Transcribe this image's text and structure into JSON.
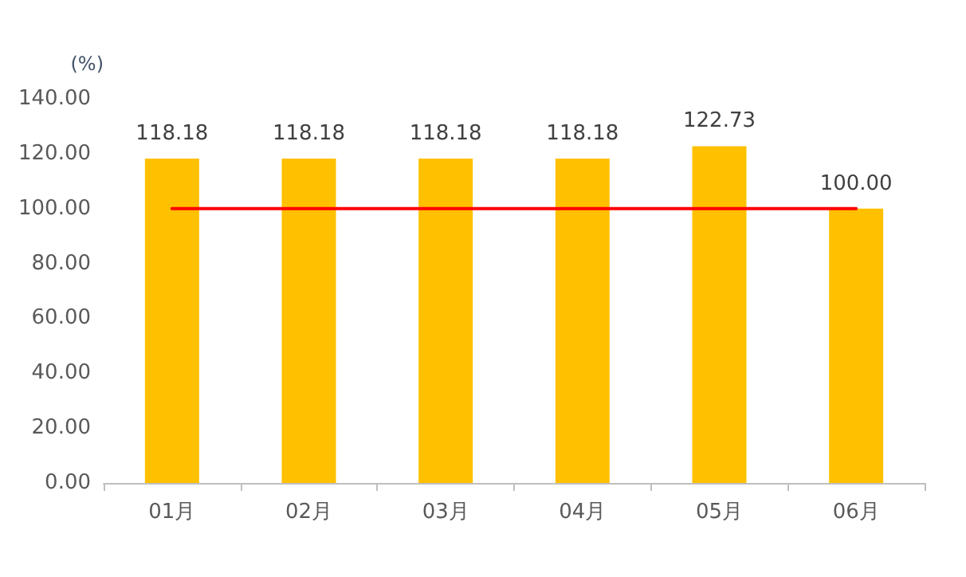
{
  "chart_data": {
    "type": "bar",
    "ylabel": "(%)",
    "categories": [
      "01月",
      "02月",
      "03月",
      "04月",
      "05月",
      "06月"
    ],
    "series": [
      {
        "color": "#ffc000",
        "values": [
          118.18,
          118.18,
          118.18,
          118.18,
          122.73,
          100.0
        ],
        "value_labels": [
          "118.18",
          "118.18",
          "118.18",
          "118.18",
          "122.73",
          "100.00"
        ]
      },
      {
        "type": "line",
        "color": "#ff0000",
        "values": [
          100,
          100,
          100,
          100,
          100,
          100
        ]
      }
    ],
    "ylim": [
      0,
      140
    ],
    "yticks": [
      {
        "value": 0,
        "label": "0.00"
      },
      {
        "value": 20,
        "label": "20.00"
      },
      {
        "value": 40,
        "label": "40.00"
      },
      {
        "value": 60,
        "label": "60.00"
      },
      {
        "value": 80,
        "label": "80.00"
      },
      {
        "value": 100,
        "label": "100.00"
      },
      {
        "value": 120,
        "label": "120.00"
      },
      {
        "value": 140,
        "label": "140.00"
      }
    ],
    "grid": false,
    "marker": "none",
    "line_style": "solid"
  }
}
